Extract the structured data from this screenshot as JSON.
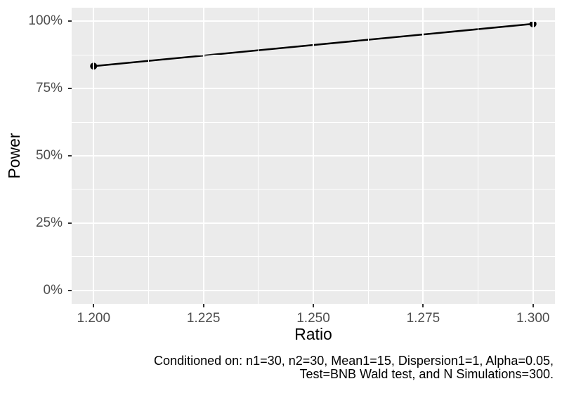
{
  "chart_data": {
    "type": "line",
    "title": "",
    "xlabel": "Ratio",
    "ylabel": "Power",
    "xlim": [
      1.2,
      1.3
    ],
    "ylim": [
      0,
      100
    ],
    "x_ticks": {
      "values": [
        1.2,
        1.225,
        1.25,
        1.275,
        1.3
      ],
      "labels": [
        "1.200",
        "1.225",
        "1.250",
        "1.275",
        "1.300"
      ]
    },
    "y_ticks": {
      "values": [
        0,
        25,
        50,
        75,
        100
      ],
      "labels": [
        "0%",
        "25%",
        "50%",
        "75%",
        "100%"
      ]
    },
    "grid": {
      "major": true,
      "minor": true
    },
    "legend": "none",
    "series": [
      {
        "name": "Power",
        "x": [
          1.2,
          1.3
        ],
        "y": [
          83.3,
          99.0
        ],
        "color": "#000000",
        "line_width": 2.5,
        "point_radius": 5
      }
    ],
    "caption": {
      "line1": "Conditioned on: n1=30, n2=30, Mean1=15, Dispersion1=1, Alpha=0.05,",
      "line2": "Test=BNB Wald test, and N Simulations=300."
    },
    "theme": {
      "figure_background": "#FFFFFF",
      "panel_background": "#EBEBEB",
      "grid_color": "#FFFFFF",
      "tick_label_color": "#4D4D4D",
      "tick_mark_color": "#333333",
      "axis_title_color": "#000000",
      "caption_color": "#000000"
    }
  }
}
